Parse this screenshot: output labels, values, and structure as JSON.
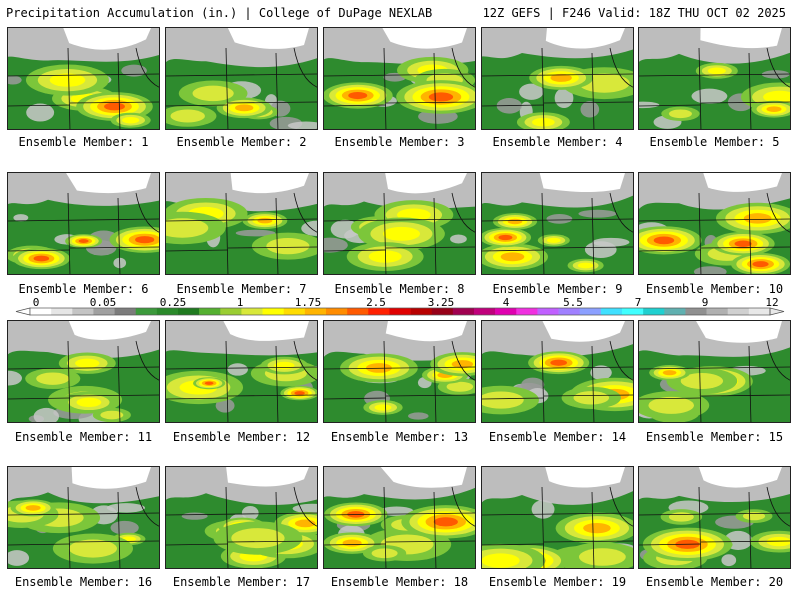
{
  "header": {
    "title": "Precipitation Accumulation (in.) | College of DuPage NEXLAB",
    "run_info": "12Z GEFS | F246 Valid: 18Z THU OCT 02 2025"
  },
  "colorbar": {
    "tick_labels": [
      "0",
      "0.05",
      "0.25",
      "1",
      "1.75",
      "2.5",
      "3.25",
      "4",
      "5.5",
      "7",
      "9",
      "12"
    ],
    "colors": [
      "#ffffff",
      "#e6e6e6",
      "#c4c4c4",
      "#a0a0a0",
      "#7c7c7c",
      "#3c9a3c",
      "#2a8a2a",
      "#1f7a1f",
      "#54b030",
      "#9acd32",
      "#d8e83a",
      "#ffff00",
      "#ffdc00",
      "#ffb400",
      "#ff8c00",
      "#ff5a00",
      "#ff2000",
      "#e00000",
      "#b80000",
      "#960018",
      "#a00050",
      "#c0007c",
      "#e000b0",
      "#f030e0",
      "#c060ff",
      "#a080ff",
      "#8ca0ff",
      "#40e0ff",
      "#40ffff",
      "#20d0d0",
      "#60b0b0",
      "#909090",
      "#b0b0b0",
      "#d0d0d0",
      "#e8e8e8"
    ]
  },
  "members": [
    {
      "label": "Ensemble Member: 1",
      "number": 1
    },
    {
      "label": "Ensemble Member: 2",
      "number": 2
    },
    {
      "label": "Ensemble Member: 3",
      "number": 3
    },
    {
      "label": "Ensemble Member: 4",
      "number": 4
    },
    {
      "label": "Ensemble Member: 5",
      "number": 5
    },
    {
      "label": "Ensemble Member: 6",
      "number": 6
    },
    {
      "label": "Ensemble Member: 7",
      "number": 7
    },
    {
      "label": "Ensemble Member: 8",
      "number": 8
    },
    {
      "label": "Ensemble Member: 9",
      "number": 9
    },
    {
      "label": "Ensemble Member: 10",
      "number": 10
    },
    {
      "label": "Ensemble Member: 11",
      "number": 11
    },
    {
      "label": "Ensemble Member: 12",
      "number": 12
    },
    {
      "label": "Ensemble Member: 13",
      "number": 13
    },
    {
      "label": "Ensemble Member: 14",
      "number": 14
    },
    {
      "label": "Ensemble Member: 15",
      "number": 15
    },
    {
      "label": "Ensemble Member: 16",
      "number": 16
    },
    {
      "label": "Ensemble Member: 17",
      "number": 17
    },
    {
      "label": "Ensemble Member: 18",
      "number": 18
    },
    {
      "label": "Ensemble Member: 19",
      "number": 19
    },
    {
      "label": "Ensemble Member: 20",
      "number": 20
    }
  ]
}
